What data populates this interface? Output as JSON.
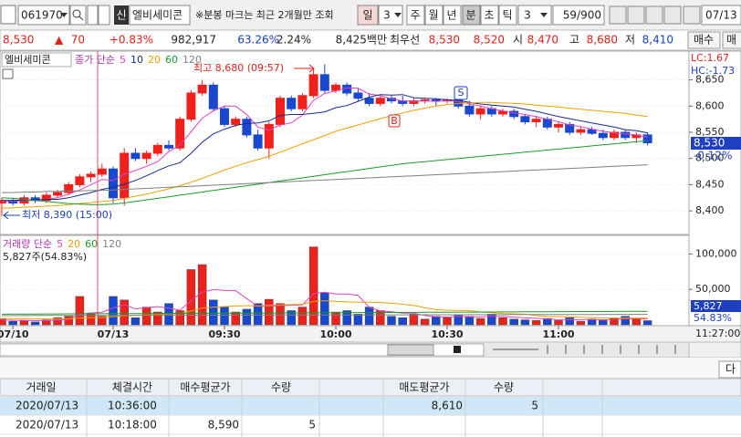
{
  "toolbar": {
    "code": "061970",
    "credit": "신",
    "name": "엘비세미콘",
    "notice": "※분봉 마크는 최근 2개월만 조회",
    "day": "일",
    "day_n": "3",
    "week": "주",
    "month": "월",
    "year": "년",
    "minute": "분",
    "second": "초",
    "tick": "틱",
    "interval": "3",
    "count": "59/900",
    "date": "07/13"
  },
  "quote": {
    "price": "8,530",
    "change_sign": "▲",
    "change": "70",
    "change_rate": "+0.83%",
    "volume": "982,917",
    "ratio": "63.26%",
    "turnover": "2.24%",
    "amount": "8,425백만",
    "best_label": "최우선",
    "best_ask": "8,530",
    "best_bid": "8,520",
    "open_label": "시",
    "open": "8,470",
    "high_label": "고",
    "high": "8,680",
    "low_label": "저",
    "low": "8,410",
    "buy_button": "매수",
    "sell_button": "매"
  },
  "chart_data": [
    {
      "type": "candlestick",
      "title": "엘비세미콘",
      "legend_title": "종가 단순",
      "categories": [
        null,
        "07/10",
        null,
        null,
        null,
        null,
        null,
        null,
        null,
        null,
        "07/13",
        null,
        null,
        null,
        null,
        null,
        null,
        null,
        null,
        null,
        "09:30",
        null,
        null,
        null,
        null,
        null,
        null,
        null,
        null,
        null,
        "10:00",
        null,
        null,
        null,
        null,
        null,
        null,
        null,
        null,
        null,
        "10:30",
        null,
        null,
        null,
        null,
        null,
        null,
        null,
        null,
        null,
        "11:00",
        null,
        null,
        null,
        null,
        null,
        null,
        null,
        null
      ],
      "open": [
        8415,
        8420,
        8415,
        8425,
        8420,
        8430,
        8435,
        8450,
        8465,
        8470,
        8480,
        8425,
        8510,
        8500,
        8510,
        8525,
        8520,
        8575,
        8625,
        8640,
        8595,
        8565,
        8575,
        8545,
        8520,
        8565,
        8615,
        8595,
        8620,
        8660,
        8630,
        8640,
        8625,
        8615,
        8605,
        8615,
        8610,
        8605,
        8610,
        8612,
        8610,
        8612,
        8600,
        8585,
        8595,
        8585,
        8590,
        8580,
        8570,
        8575,
        8560,
        8565,
        8550,
        8555,
        8548,
        8540,
        8550,
        8540,
        8545
      ],
      "high": [
        8425,
        8425,
        8430,
        8430,
        8435,
        8440,
        8455,
        8470,
        8475,
        8490,
        8485,
        8520,
        8520,
        8515,
        8530,
        8535,
        8580,
        8630,
        8650,
        8645,
        8600,
        8580,
        8580,
        8555,
        8570,
        8620,
        8620,
        8625,
        8670,
        8680,
        8645,
        8645,
        8635,
        8625,
        8620,
        8620,
        8620,
        8615,
        8615,
        8615,
        8615,
        8615,
        8610,
        8600,
        8600,
        8595,
        8595,
        8585,
        8580,
        8580,
        8570,
        8570,
        8560,
        8560,
        8555,
        8555,
        8555,
        8550,
        8550
      ],
      "low": [
        8390,
        8410,
        8410,
        8415,
        8415,
        8425,
        8430,
        8445,
        8455,
        8465,
        8415,
        8410,
        8495,
        8490,
        8505,
        8515,
        8515,
        8570,
        8620,
        8590,
        8560,
        8560,
        8540,
        8515,
        8500,
        8560,
        8590,
        8590,
        8615,
        8625,
        8625,
        8620,
        8610,
        8600,
        8600,
        8605,
        8600,
        8600,
        8605,
        8600,
        8605,
        8595,
        8580,
        8575,
        8580,
        8580,
        8575,
        8565,
        8560,
        8555,
        8550,
        8545,
        8545,
        8545,
        8535,
        8535,
        8535,
        8530,
        8525
      ],
      "close": [
        8420,
        8415,
        8425,
        8420,
        8430,
        8435,
        8450,
        8465,
        8470,
        8480,
        8425,
        8510,
        8500,
        8510,
        8525,
        8520,
        8575,
        8625,
        8640,
        8595,
        8565,
        8575,
        8545,
        8520,
        8565,
        8615,
        8595,
        8620,
        8660,
        8630,
        8640,
        8625,
        8615,
        8605,
        8615,
        8610,
        8605,
        8610,
        8612,
        8610,
        8612,
        8600,
        8585,
        8595,
        8585,
        8590,
        8580,
        8570,
        8575,
        8560,
        8565,
        8550,
        8555,
        8548,
        8540,
        8550,
        8540,
        8545,
        8530
      ],
      "up_color": "#f0201a",
      "down_color": "#1848d0",
      "series": [
        {
          "name": "5",
          "color": "#e040c0",
          "values": [
            8418,
            8418,
            8420,
            8420,
            8422,
            8425,
            8432,
            8440,
            8450,
            8460,
            8458,
            8470,
            8477,
            8485,
            8494,
            8513,
            8526,
            8551,
            8577,
            8591,
            8600,
            8600,
            8584,
            8560,
            8554,
            8564,
            8568,
            8583,
            8611,
            8624,
            8629,
            8635,
            8634,
            8623,
            8620,
            8614,
            8610,
            8609,
            8610,
            8609,
            8610,
            8609,
            8604,
            8600,
            8595,
            8591,
            8587,
            8584,
            8580,
            8575,
            8570,
            8564,
            8561,
            8556,
            8552,
            8549,
            8547,
            8545,
            8541
          ]
        },
        {
          "name": "10",
          "color": "#1a2a8c",
          "values": [
            8420,
            8420,
            8421,
            8421,
            8422,
            8422,
            8425,
            8430,
            8435,
            8441,
            8445,
            8451,
            8458,
            8467,
            8477,
            8486,
            8492,
            8510,
            8531,
            8547,
            8556,
            8563,
            8567,
            8568,
            8572,
            8582,
            8584,
            8584,
            8586,
            8589,
            8597,
            8601,
            8609,
            8617,
            8622,
            8621,
            8622,
            8616,
            8615,
            8614,
            8612,
            8611,
            8607,
            8604,
            8602,
            8600,
            8598,
            8594,
            8590,
            8585,
            8580,
            8576,
            8572,
            8568,
            8564,
            8560,
            8555,
            8553,
            8549
          ]
        },
        {
          "name": "20",
          "color": "#f0a000",
          "values": [
            8405,
            8406,
            8407,
            8408,
            8409,
            8410,
            8412,
            8414,
            8416,
            8418,
            8420,
            8424,
            8428,
            8432,
            8437,
            8442,
            8448,
            8455,
            8462,
            8470,
            8478,
            8485,
            8492,
            8498,
            8504,
            8512,
            8520,
            8528,
            8536,
            8544,
            8552,
            8558,
            8564,
            8570,
            8576,
            8582,
            8587,
            8592,
            8596,
            8600,
            8603,
            8605,
            8606,
            8607,
            8607,
            8606,
            8605,
            8604,
            8602,
            8600,
            8598,
            8596,
            8594,
            8592,
            8590,
            8588,
            8586,
            8583,
            8580
          ]
        },
        {
          "name": "60",
          "color": "#1a9a2a",
          "values": [
            8425,
            8424,
            8422,
            8420,
            8418,
            8416,
            8414,
            8413,
            8412,
            8412,
            8413,
            8415,
            8418,
            8421,
            8424,
            8427,
            8430,
            8433,
            8436,
            8439,
            8442,
            8445,
            8448,
            8451,
            8454,
            8457,
            8460,
            8463,
            8466,
            8469,
            8472,
            8475,
            8478,
            8481,
            8484,
            8487,
            8490,
            8492,
            8494,
            8496,
            8498,
            8500,
            8502,
            8504,
            8506,
            8508,
            8510,
            8512,
            8514,
            8516,
            8518,
            8520,
            8522,
            8524,
            8526,
            8528,
            8530,
            8532,
            8534
          ]
        },
        {
          "name": "120",
          "color": "#808080",
          "values": [
            8435,
            8435,
            8436,
            8436,
            8437,
            8437,
            8438,
            8438,
            8439,
            8439,
            8440,
            8441,
            8442,
            8443,
            8444,
            8445,
            8446,
            8447,
            8448,
            8449,
            8450,
            8451,
            8452,
            8453,
            8454,
            8455,
            8456,
            8457,
            8458,
            8459,
            8460,
            8461,
            8462,
            8463,
            8464,
            8465,
            8466,
            8467,
            8468,
            8469,
            8470,
            8471,
            8472,
            8473,
            8474,
            8475,
            8476,
            8477,
            8478,
            8479,
            8480,
            8481,
            8482,
            8483,
            8484,
            8485,
            8486,
            8487,
            8488
          ]
        }
      ],
      "ylim": [
        8355,
        8705
      ],
      "yticks": [
        {
          "value": 8400,
          "label": "8,400"
        },
        {
          "value": 8450,
          "label": "8,450"
        },
        {
          "value": 8500,
          "label": "8,500"
        },
        {
          "value": 8550,
          "label": "8,550"
        },
        {
          "value": 8600,
          "label": "8,600"
        },
        {
          "value": 8650,
          "label": "8,650"
        }
      ],
      "grid": true,
      "annotations": {
        "high": "최고 8,680 (09:57)",
        "low": "최저 8,390 (15:00)",
        "buy_mark": "B",
        "sell_mark": "S"
      },
      "lc": "LC:1.67",
      "hc": "HC:-1.73",
      "last_price": "8,530",
      "last_change": "-0.12%",
      "cursor_time": "11:27:00"
    },
    {
      "type": "bar",
      "title": "거래량 단순",
      "subtitle": "5,827주(54.83%)",
      "values": [
        8000,
        5000,
        6000,
        4000,
        7000,
        10000,
        12000,
        40000,
        15000,
        12000,
        40000,
        35000,
        10000,
        25000,
        18000,
        30000,
        20000,
        78000,
        85000,
        35000,
        25000,
        18000,
        22000,
        30000,
        36000,
        30000,
        20000,
        25000,
        110000,
        45000,
        18000,
        20000,
        15000,
        25000,
        20000,
        12000,
        10000,
        15000,
        8000,
        12000,
        10000,
        14000,
        12000,
        9000,
        15000,
        10000,
        8000,
        7000,
        6000,
        9000,
        6000,
        10000,
        5000,
        8000,
        6000,
        9000,
        12000,
        8000,
        5827
      ],
      "series": [
        {
          "name": "5",
          "color": "#e040c0",
          "values": [
            7000,
            6500,
            6300,
            5800,
            6000,
            6400,
            7800,
            14600,
            16800,
            17800,
            23800,
            28400,
            22400,
            24400,
            25600,
            23600,
            20600,
            34200,
            46200,
            49600,
            48600,
            48200,
            37000,
            26000,
            26200,
            27200,
            27600,
            28200,
            44200,
            46000,
            43600,
            43600,
            41600,
            24600,
            19600,
            18400,
            16400,
            16400,
            13000,
            11400,
            11000,
            11800,
            11200,
            11400,
            12000,
            12000,
            10800,
            9800,
            9200,
            8000,
            7200,
            7600,
            7200,
            7600,
            7000,
            7600,
            8000,
            8600,
            8165
          ]
        },
        {
          "name": "20",
          "color": "#f0a000",
          "values": [
            9000,
            8800,
            8600,
            8400,
            8300,
            8300,
            8400,
            9600,
            10000,
            10200,
            11500,
            12800,
            13000,
            13800,
            14300,
            15400,
            15900,
            19500,
            23500,
            25000,
            25800,
            26400,
            27000,
            26500,
            27500,
            28000,
            28500,
            29000,
            33000,
            34000,
            33000,
            32500,
            32000,
            32000,
            31500,
            30500,
            29000,
            27500,
            24000,
            21500,
            20500,
            20300,
            20000,
            18000,
            17000,
            16000,
            15500,
            15000,
            13000,
            12000,
            11600,
            11200,
            10600,
            10000,
            9800,
            9700,
            9600,
            9500,
            9300
          ]
        },
        {
          "name": "60",
          "color": "#1a9a2a",
          "values": [
            15000,
            15070,
            15140,
            15210,
            15280,
            15350,
            15420,
            15490,
            15560,
            15630,
            15700,
            15770,
            15840,
            15910,
            15980,
            16050,
            16120,
            16190,
            16260,
            16330,
            16400,
            16470,
            16540,
            16610,
            16680,
            16750,
            16820,
            16890,
            16960,
            17030,
            17100,
            17170,
            17240,
            17310,
            17380,
            17450,
            17520,
            17590,
            17660,
            17730,
            17800,
            17870,
            17940,
            18010,
            18080,
            18150,
            18220,
            18290,
            18360,
            18430,
            18500,
            18570,
            18640,
            18710,
            18780,
            18850,
            18920,
            18990,
            19060
          ]
        },
        {
          "name": "120",
          "color": "#808080",
          "values": [
            13000,
            13030,
            13060,
            13090,
            13120,
            13150,
            13180,
            13210,
            13240,
            13270,
            13300,
            13330,
            13360,
            13390,
            13420,
            13450,
            13480,
            13510,
            13540,
            13570,
            13600,
            13630,
            13660,
            13690,
            13720,
            13750,
            13780,
            13810,
            13840,
            13870,
            13900,
            13930,
            13960,
            13990,
            14020,
            14050,
            14080,
            14110,
            14140,
            14170,
            14200,
            14230,
            14260,
            14290,
            14320,
            14350,
            14380,
            14410,
            14440,
            14470,
            14500,
            14530,
            14560,
            14590,
            14620,
            14650,
            14680,
            14710,
            14740
          ]
        }
      ],
      "ylim": [
        0,
        125000
      ],
      "yticks": [
        {
          "value": 50000,
          "label": "50,000"
        },
        {
          "value": 100000,
          "label": "100,000"
        }
      ],
      "last_value": "5,827",
      "last_ratio": "54.83%"
    }
  ],
  "next_button": "다",
  "table": {
    "columns": [
      "거래일",
      "체결시간",
      "매수평균가",
      "수량",
      "매도평균가",
      "수량"
    ],
    "rows": [
      [
        "2020/07/13",
        "10:36:00",
        null,
        null,
        "8,610",
        "5"
      ],
      [
        "2020/07/13",
        "10:18:00",
        "8,590",
        "5",
        null,
        null
      ]
    ]
  }
}
